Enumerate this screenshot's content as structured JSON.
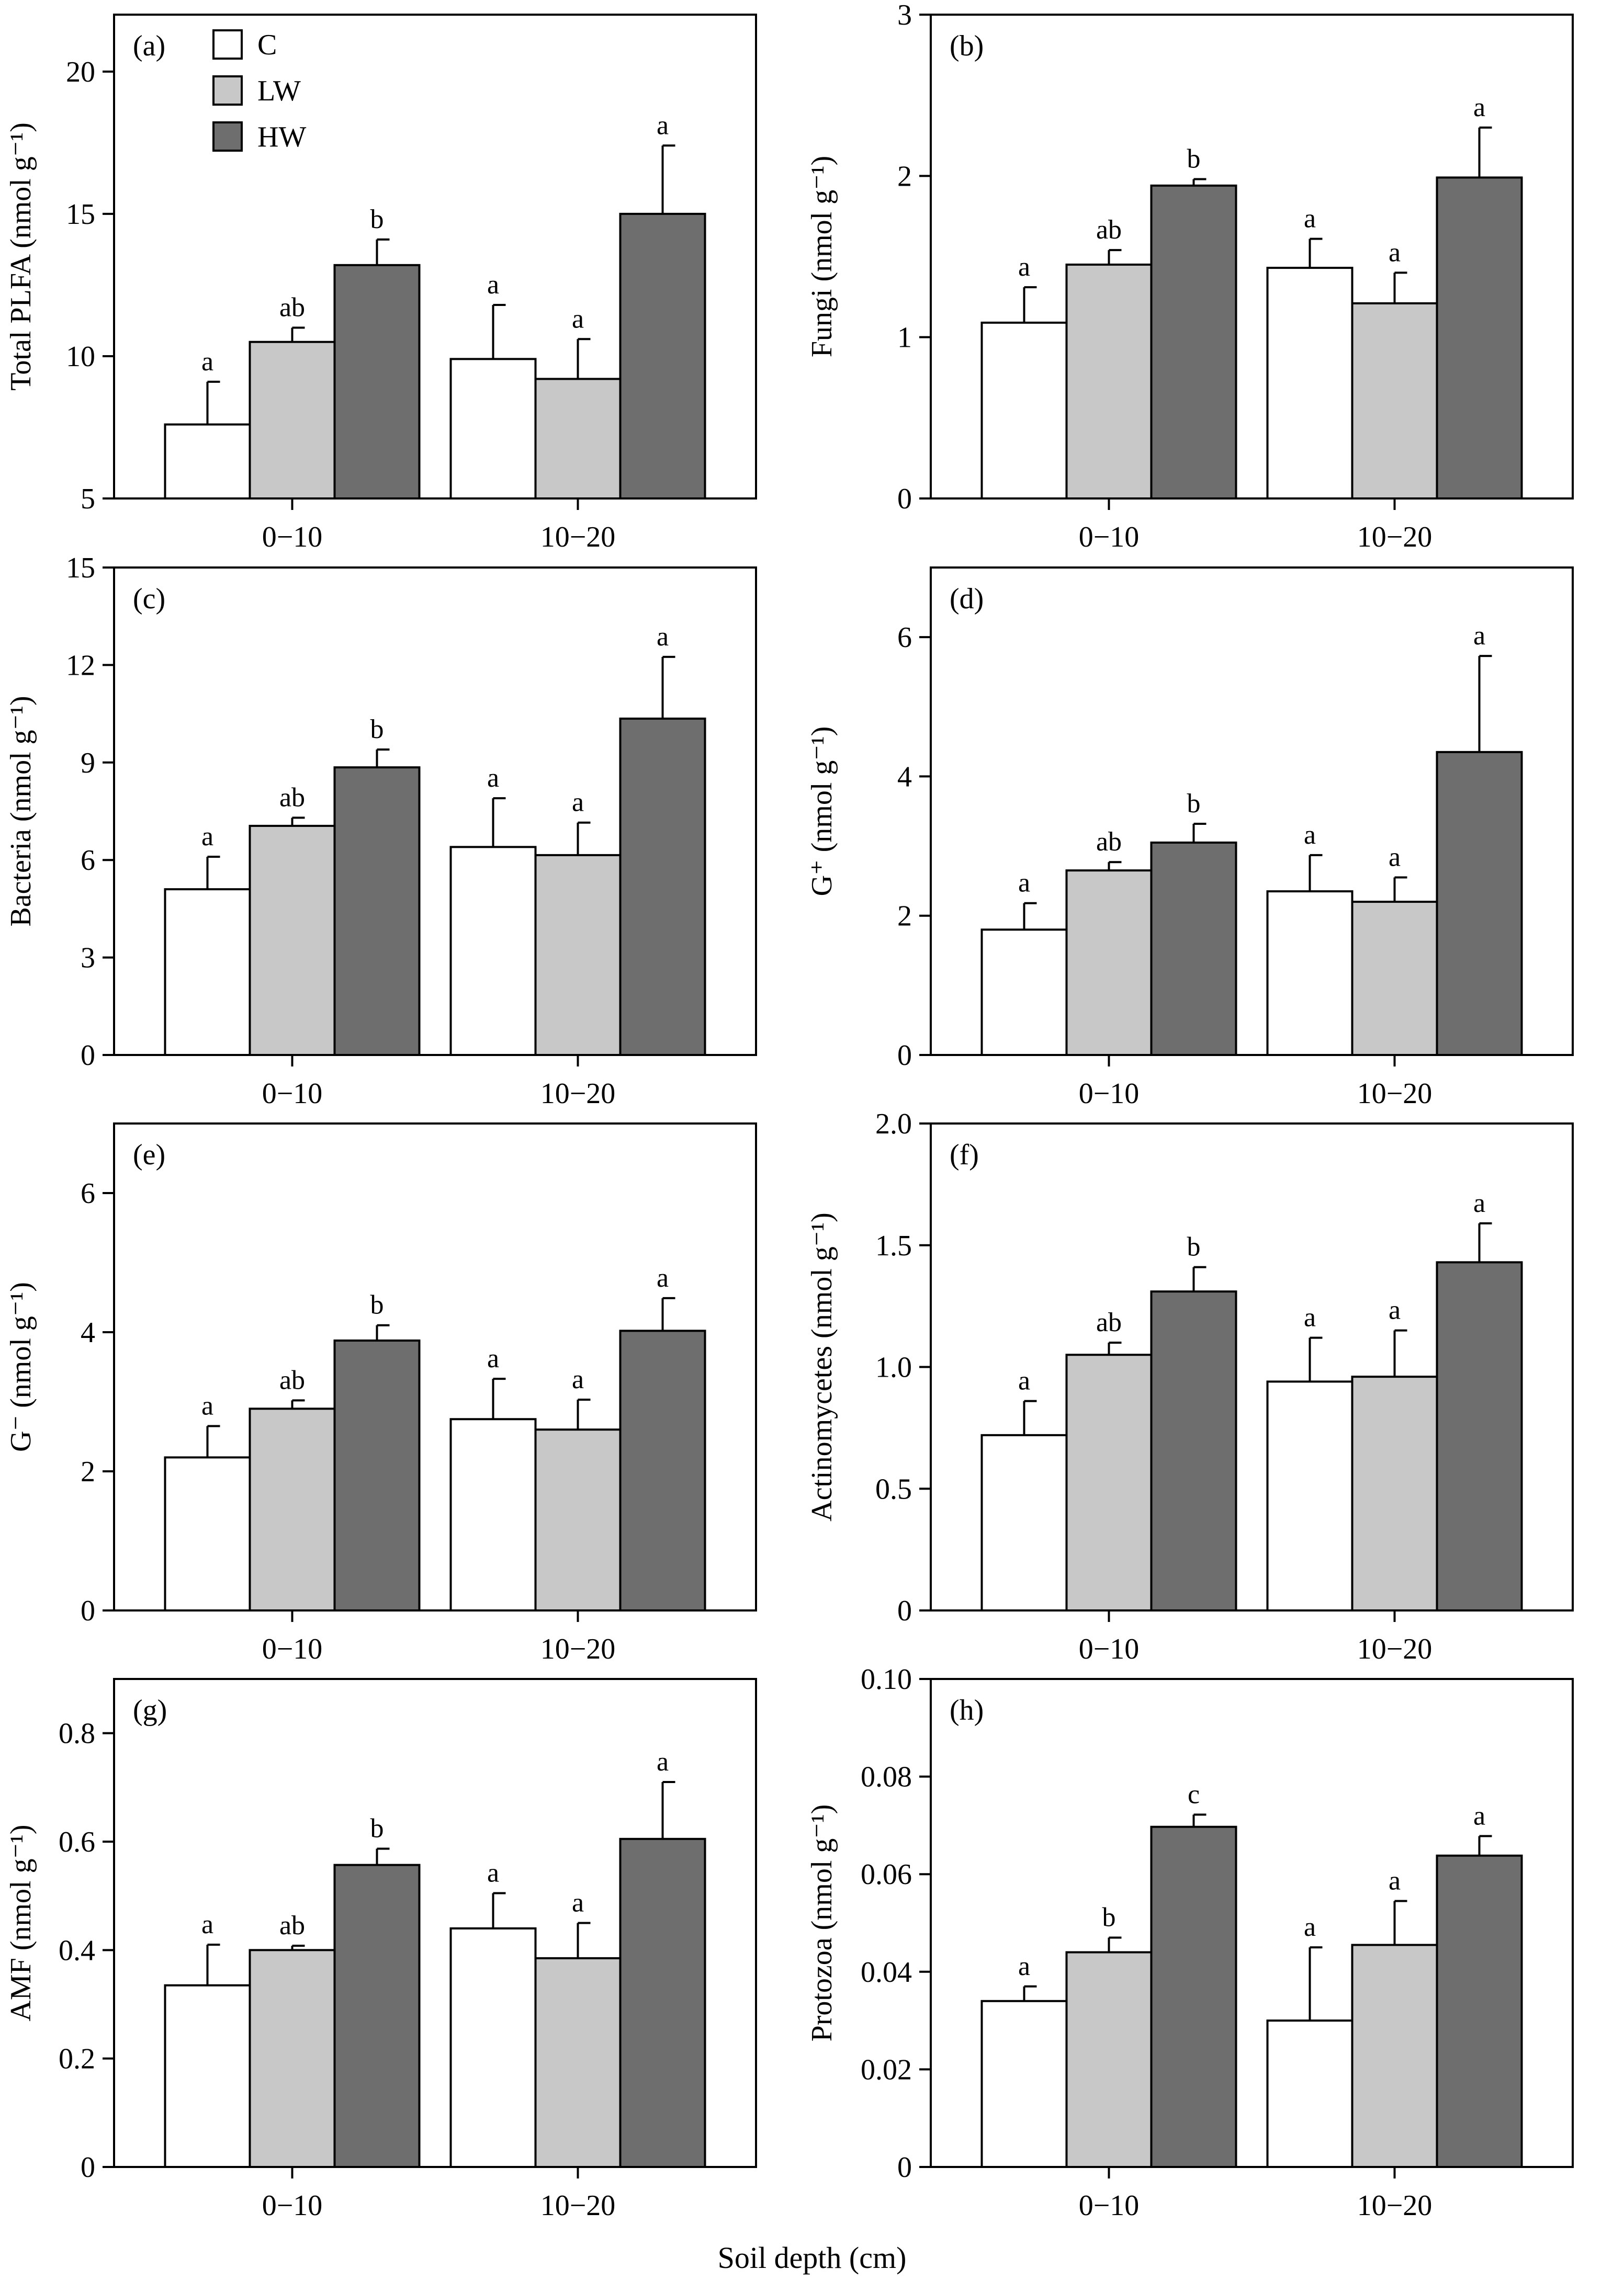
{
  "figure": {
    "x_title": "Soil depth (cm)"
  },
  "legend": {
    "items": [
      {
        "label": "C",
        "color": "#ffffff"
      },
      {
        "label": "LW",
        "color": "#c8c8c8"
      },
      {
        "label": "HW",
        "color": "#6e6e6e"
      }
    ]
  },
  "chart_data": [
    {
      "type": "bar",
      "panel": "(a)",
      "ylabel": "Total PLFA (nmol g⁻¹)",
      "ylim": [
        5,
        22
      ],
      "yticks": [
        5,
        10,
        15,
        20
      ],
      "ytick_labels": [
        "5",
        "10",
        "15",
        "20"
      ],
      "categories": [
        "0−10",
        "10−20"
      ],
      "series": [
        {
          "name": "C",
          "values": [
            7.6,
            9.9
          ],
          "errors": [
            1.5,
            1.9
          ],
          "letters": [
            "a",
            "a"
          ]
        },
        {
          "name": "LW",
          "values": [
            10.5,
            9.2
          ],
          "errors": [
            0.5,
            1.4
          ],
          "letters": [
            "ab",
            "a"
          ]
        },
        {
          "name": "HW",
          "values": [
            13.2,
            15.0
          ],
          "errors": [
            0.9,
            2.4
          ],
          "letters": [
            "b",
            "a"
          ]
        }
      ]
    },
    {
      "type": "bar",
      "panel": "(b)",
      "ylabel": "Fungi (nmol g⁻¹)",
      "ylim": [
        0,
        3
      ],
      "yticks": [
        0,
        1,
        2,
        3
      ],
      "ytick_labels": [
        "0",
        "1",
        "2",
        "3"
      ],
      "categories": [
        "0−10",
        "10−20"
      ],
      "series": [
        {
          "name": "C",
          "values": [
            1.09,
            1.43
          ],
          "errors": [
            0.22,
            0.18
          ],
          "letters": [
            "a",
            "a"
          ]
        },
        {
          "name": "LW",
          "values": [
            1.45,
            1.21
          ],
          "errors": [
            0.09,
            0.19
          ],
          "letters": [
            "ab",
            "a"
          ]
        },
        {
          "name": "HW",
          "values": [
            1.94,
            1.99
          ],
          "errors": [
            0.04,
            0.31
          ],
          "letters": [
            "b",
            "a"
          ]
        }
      ]
    },
    {
      "type": "bar",
      "panel": "(c)",
      "ylabel": "Bacteria (nmol g⁻¹)",
      "ylim": [
        0,
        15
      ],
      "yticks": [
        0,
        3,
        6,
        9,
        12,
        15
      ],
      "ytick_labels": [
        "0",
        "3",
        "6",
        "9",
        "12",
        "15"
      ],
      "categories": [
        "0−10",
        "10−20"
      ],
      "series": [
        {
          "name": "C",
          "values": [
            5.1,
            6.4
          ],
          "errors": [
            1.0,
            1.5
          ],
          "letters": [
            "a",
            "a"
          ]
        },
        {
          "name": "LW",
          "values": [
            7.05,
            6.15
          ],
          "errors": [
            0.25,
            1.0
          ],
          "letters": [
            "ab",
            "a"
          ]
        },
        {
          "name": "HW",
          "values": [
            8.85,
            10.35
          ],
          "errors": [
            0.55,
            1.9
          ],
          "letters": [
            "b",
            "a"
          ]
        }
      ]
    },
    {
      "type": "bar",
      "panel": "(d)",
      "ylabel": "G⁺ (nmol g⁻¹)",
      "ylim": [
        0,
        7
      ],
      "yticks": [
        0,
        2,
        4,
        6
      ],
      "ytick_labels": [
        "0",
        "2",
        "4",
        "6"
      ],
      "categories": [
        "0−10",
        "10−20"
      ],
      "series": [
        {
          "name": "C",
          "values": [
            1.8,
            2.35
          ],
          "errors": [
            0.38,
            0.52
          ],
          "letters": [
            "a",
            "a"
          ]
        },
        {
          "name": "LW",
          "values": [
            2.65,
            2.2
          ],
          "errors": [
            0.12,
            0.35
          ],
          "letters": [
            "ab",
            "a"
          ]
        },
        {
          "name": "HW",
          "values": [
            3.05,
            4.35
          ],
          "errors": [
            0.27,
            1.38
          ],
          "letters": [
            "b",
            "a"
          ]
        }
      ]
    },
    {
      "type": "bar",
      "panel": "(e)",
      "ylabel": "G⁻ (nmol g⁻¹)",
      "ylim": [
        0,
        7
      ],
      "yticks": [
        0,
        2,
        4,
        6
      ],
      "ytick_labels": [
        "0",
        "2",
        "4",
        "6"
      ],
      "categories": [
        "0−10",
        "10−20"
      ],
      "series": [
        {
          "name": "C",
          "values": [
            2.2,
            2.75
          ],
          "errors": [
            0.45,
            0.58
          ],
          "letters": [
            "a",
            "a"
          ]
        },
        {
          "name": "LW",
          "values": [
            2.9,
            2.6
          ],
          "errors": [
            0.12,
            0.43
          ],
          "letters": [
            "ab",
            "a"
          ]
        },
        {
          "name": "HW",
          "values": [
            3.88,
            4.02
          ],
          "errors": [
            0.22,
            0.47
          ],
          "letters": [
            "b",
            "a"
          ]
        }
      ]
    },
    {
      "type": "bar",
      "panel": "(f)",
      "ylabel": "Actinomycetes (nmol g⁻¹)",
      "ylim": [
        0,
        2.0
      ],
      "yticks": [
        0,
        0.5,
        1.0,
        1.5,
        2.0
      ],
      "ytick_labels": [
        "0",
        "0.5",
        "1.0",
        "1.5",
        "2.0"
      ],
      "categories": [
        "0−10",
        "10−20"
      ],
      "series": [
        {
          "name": "C",
          "values": [
            0.72,
            0.94
          ],
          "errors": [
            0.14,
            0.18
          ],
          "letters": [
            "a",
            "a"
          ]
        },
        {
          "name": "LW",
          "values": [
            1.05,
            0.96
          ],
          "errors": [
            0.05,
            0.19
          ],
          "letters": [
            "ab",
            "a"
          ]
        },
        {
          "name": "HW",
          "values": [
            1.31,
            1.43
          ],
          "errors": [
            0.1,
            0.16
          ],
          "letters": [
            "b",
            "a"
          ]
        }
      ]
    },
    {
      "type": "bar",
      "panel": "(g)",
      "ylabel": "AMF (nmol g⁻¹)",
      "ylim": [
        0,
        0.9
      ],
      "yticks": [
        0,
        0.2,
        0.4,
        0.6,
        0.8
      ],
      "ytick_labels": [
        "0",
        "0.2",
        "0.4",
        "0.6",
        "0.8"
      ],
      "categories": [
        "0−10",
        "10−20"
      ],
      "series": [
        {
          "name": "C",
          "values": [
            0.335,
            0.44
          ],
          "errors": [
            0.075,
            0.065
          ],
          "letters": [
            "a",
            "a"
          ]
        },
        {
          "name": "LW",
          "values": [
            0.4,
            0.385
          ],
          "errors": [
            0.008,
            0.065
          ],
          "letters": [
            "ab",
            "a"
          ]
        },
        {
          "name": "HW",
          "values": [
            0.557,
            0.605
          ],
          "errors": [
            0.03,
            0.105
          ],
          "letters": [
            "b",
            "a"
          ]
        }
      ]
    },
    {
      "type": "bar",
      "panel": "(h)",
      "ylabel": "Protozoa (nmol g⁻¹)",
      "ylim": [
        0,
        0.1
      ],
      "yticks": [
        0,
        0.02,
        0.04,
        0.06,
        0.08,
        0.1
      ],
      "ytick_labels": [
        "0",
        "0.02",
        "0.04",
        "0.06",
        "0.08",
        "0.10"
      ],
      "categories": [
        "0−10",
        "10−20"
      ],
      "series": [
        {
          "name": "C",
          "values": [
            0.034,
            0.03
          ],
          "errors": [
            0.003,
            0.015
          ],
          "letters": [
            "a",
            "a"
          ]
        },
        {
          "name": "LW",
          "values": [
            0.044,
            0.0455
          ],
          "errors": [
            0.003,
            0.009
          ],
          "letters": [
            "b",
            "a"
          ]
        },
        {
          "name": "HW",
          "values": [
            0.0697,
            0.0638
          ],
          "errors": [
            0.0025,
            0.004
          ],
          "letters": [
            "c",
            "a"
          ]
        }
      ]
    }
  ]
}
